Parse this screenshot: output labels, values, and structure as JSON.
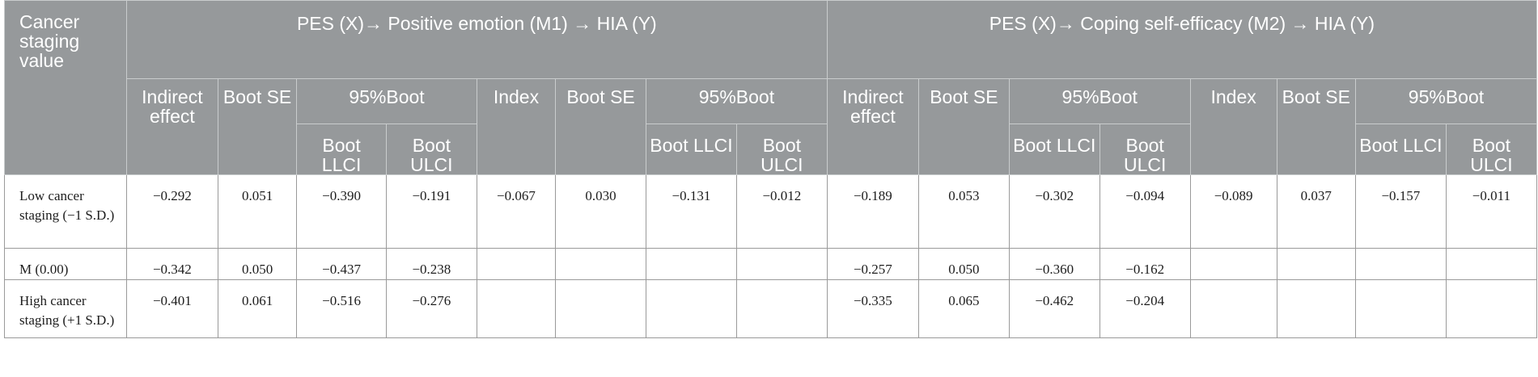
{
  "header": {
    "row_label": "Cancer staging value",
    "group1": "PES (X)→ Positive emotion (M1) → HIA (Y)",
    "group2": "PES (X)→ Coping self-efficacy (M2) → HIA (Y)",
    "indirect_effect": "Indirect effect",
    "boot_se": "Boot SE",
    "ci": "95%Boot",
    "index": "Index",
    "boot_llci": "Boot LLCI",
    "boot_ulci": "Boot ULCI"
  },
  "rows": [
    {
      "label": "Low cancer staging (−1 S.D.)",
      "values": [
        "−0.292",
        "0.051",
        "−0.390",
        "−0.191",
        "−0.067",
        "0.030",
        "−0.131",
        "−0.012",
        "−0.189",
        "0.053",
        "−0.302",
        "−0.094",
        "−0.089",
        "0.037",
        "−0.157",
        "−0.011"
      ]
    },
    {
      "label": "M (0.00)",
      "values": [
        "−0.342",
        "0.050",
        "−0.437",
        "−0.238",
        "",
        "",
        "",
        "",
        "−0.257",
        "0.050",
        "−0.360",
        "−0.162",
        "",
        "",
        "",
        ""
      ]
    },
    {
      "label": "High cancer staging (+1 S.D.)",
      "values": [
        "−0.401",
        "0.061",
        "−0.516",
        "−0.276",
        "",
        "",
        "",
        "",
        "−0.335",
        "0.065",
        "−0.462",
        "−0.204",
        "",
        "",
        "",
        ""
      ]
    }
  ]
}
